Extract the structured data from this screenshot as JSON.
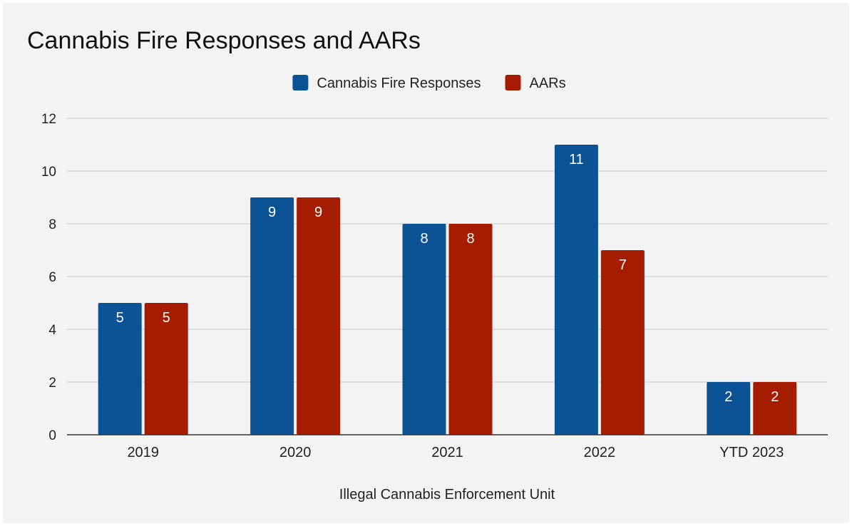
{
  "chart_data": {
    "type": "bar",
    "title": "Cannabis Fire Responses and AARs",
    "xlabel": "Illegal Cannabis Enforcement Unit",
    "ylabel": "",
    "categories": [
      "2019",
      "2020",
      "2021",
      "2022",
      "YTD 2023"
    ],
    "series": [
      {
        "name": "Cannabis Fire Responses",
        "color": "#0b5394",
        "values": [
          5,
          9,
          8,
          11,
          2
        ]
      },
      {
        "name": "AARs",
        "color": "#a61c00",
        "values": [
          5,
          9,
          8,
          7,
          2
        ]
      }
    ],
    "ylim": [
      0,
      12
    ],
    "yticks": [
      0,
      2,
      4,
      6,
      8,
      10,
      12
    ],
    "grid": true,
    "legend": "top-center",
    "data_labels": true
  }
}
